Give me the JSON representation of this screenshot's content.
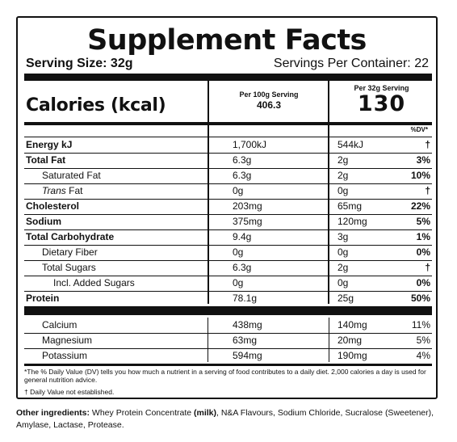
{
  "title": "Supplement Facts",
  "serving_size": "Serving Size: 32g",
  "servings_per_container": "Servings Per Container: 22",
  "calories_label": "Calories (kcal)",
  "per100_label": "Per 100g Serving",
  "per100_value": "406.3",
  "per32_label": "Per 32g Serving",
  "per32_value": "130",
  "dv_header": "%DV*",
  "nutrients": [
    {
      "name": "Energy kJ",
      "v100": "1,700kJ",
      "v32": "544kJ",
      "dv": "†"
    },
    {
      "name": "Total Fat",
      "v100": "6.3g",
      "v32": "2g",
      "dv": "3%"
    },
    {
      "name": "Saturated Fat",
      "v100": "6.3g",
      "v32": "2g",
      "dv": "10%"
    },
    {
      "name": "Trans",
      "name_suffix": " Fat",
      "v100": "0g",
      "v32": "0g",
      "dv": "†"
    },
    {
      "name": "Cholesterol",
      "v100": "203mg",
      "v32": "65mg",
      "dv": "22%"
    },
    {
      "name": "Sodium",
      "v100": "375mg",
      "v32": "120mg",
      "dv": "5%"
    },
    {
      "name": "Total Carbohydrate",
      "v100": "9.4g",
      "v32": "3g",
      "dv": "1%"
    },
    {
      "name": "Dietary Fiber",
      "v100": "0g",
      "v32": "0g",
      "dv": "0%"
    },
    {
      "name": "Total Sugars",
      "v100": "6.3g",
      "v32": "2g",
      "dv": "†"
    },
    {
      "name": "Incl. Added Sugars",
      "v100": "0g",
      "v32": "0g",
      "dv": "0%"
    },
    {
      "name": "Protein",
      "v100": "78.1g",
      "v32": "25g",
      "dv": "50%"
    }
  ],
  "minerals": [
    {
      "name": "Calcium",
      "v100": "438mg",
      "v32": "140mg",
      "dv": "11%"
    },
    {
      "name": "Magnesium",
      "v100": "63mg",
      "v32": "20mg",
      "dv": "5%"
    },
    {
      "name": "Potassium",
      "v100": "594mg",
      "v32": "190mg",
      "dv": "4%"
    }
  ],
  "footnote_dv": "*The % Daily Value (DV) tells you how much a nutrient in a serving of food contributes to a daily diet. 2,000 calories a day is used for general nutrition advice.",
  "footnote_dagger": "† Daily Value not established.",
  "other_ingredients_label": "Other ingredients:",
  "other_ingredients_part1": " Whey Protein Concentrate ",
  "other_ingredients_allergen": "(milk)",
  "other_ingredients_part2": ", N&A Flavours, Sodium Chloride, Sucralose (Sweetener), Amylase, Lactase, Protease."
}
